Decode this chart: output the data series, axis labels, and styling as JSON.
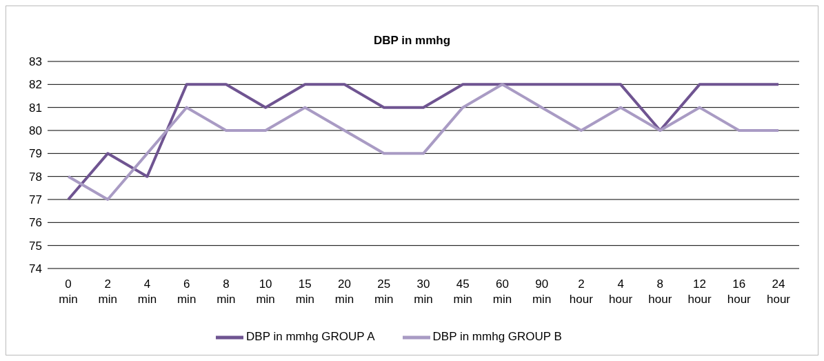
{
  "chart_data": {
    "type": "line",
    "title": "DBP in mmhg",
    "categories": [
      "0 min",
      "2 min",
      "4 min",
      "6 min",
      "8 min",
      "10 min",
      "15 min",
      "20 min",
      "25 min",
      "30 min",
      "45 min",
      "60 min",
      "90 min",
      "2 hour",
      "4 hour",
      "8 hour",
      "12 hour",
      "16 hour",
      "24 hour"
    ],
    "series": [
      {
        "name": "DBP in mmhg GROUP A",
        "color": "#6f5491",
        "values": [
          77,
          79,
          78,
          82,
          82,
          81,
          82,
          82,
          81,
          81,
          82,
          82,
          82,
          82,
          82,
          80,
          82,
          82,
          82
        ]
      },
      {
        "name": "DBP in mmhg GROUP B",
        "color": "#a99bc4",
        "values": [
          78,
          77,
          79,
          81,
          80,
          80,
          81,
          80,
          79,
          79,
          81,
          82,
          81,
          80,
          81,
          80,
          81,
          80,
          80
        ]
      }
    ],
    "ylim": [
      74,
      83
    ],
    "yticks": [
      74,
      75,
      76,
      77,
      78,
      79,
      80,
      81,
      82,
      83
    ],
    "grid": "y",
    "legend": "bottom",
    "marker": "none",
    "line_style": "solid"
  }
}
